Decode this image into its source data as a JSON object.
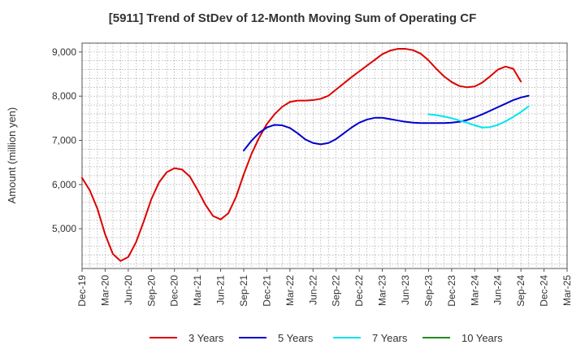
{
  "chart_data": {
    "type": "line",
    "title": "[5911]  Trend of StDev of 12-Month Moving Sum of Operating CF",
    "ylabel": "Amount (million yen)",
    "xlabel": "",
    "ylim": [
      4100,
      9200
    ],
    "yticks": [
      5000,
      6000,
      7000,
      8000,
      9000
    ],
    "ytick_labels": [
      "5,000",
      "6,000",
      "7,000",
      "8,000",
      "9,000"
    ],
    "x_categories": [
      "Dec-19",
      "Mar-20",
      "Jun-20",
      "Sep-20",
      "Dec-20",
      "Mar-21",
      "Jun-21",
      "Sep-21",
      "Dec-21",
      "Mar-22",
      "Jun-22",
      "Sep-22",
      "Dec-22",
      "Mar-23",
      "Jun-23",
      "Sep-23",
      "Dec-23",
      "Mar-24",
      "Jun-24",
      "Sep-24",
      "Dec-24",
      "Mar-25"
    ],
    "x_months": [
      "Dec-19",
      "Jan-20",
      "Feb-20",
      "Mar-20",
      "Apr-20",
      "May-20",
      "Jun-20",
      "Jul-20",
      "Aug-20",
      "Sep-20",
      "Oct-20",
      "Nov-20",
      "Dec-20",
      "Jan-21",
      "Feb-21",
      "Mar-21",
      "Apr-21",
      "May-21",
      "Jun-21",
      "Jul-21",
      "Aug-21",
      "Sep-21",
      "Oct-21",
      "Nov-21",
      "Dec-21",
      "Jan-22",
      "Feb-22",
      "Mar-22",
      "Apr-22",
      "May-22",
      "Jun-22",
      "Jul-22",
      "Aug-22",
      "Sep-22",
      "Oct-22",
      "Nov-22",
      "Dec-22",
      "Jan-23",
      "Feb-23",
      "Mar-23",
      "Apr-23",
      "May-23",
      "Jun-23",
      "Jul-23",
      "Aug-23",
      "Sep-23",
      "Oct-23",
      "Nov-23",
      "Dec-23",
      "Jan-24",
      "Feb-24",
      "Mar-24",
      "Apr-24",
      "May-24",
      "Jun-24",
      "Jul-24",
      "Aug-24",
      "Sep-24",
      "Oct-24",
      "Nov-24",
      "Dec-24",
      "Jan-25",
      "Feb-25",
      "Mar-25"
    ],
    "grid": true,
    "legend_position": "bottom",
    "series": [
      {
        "name": "3 Years",
        "color": "#dd0000",
        "start": "Dec-19",
        "values": [
          6150,
          5870,
          5450,
          4870,
          4430,
          4270,
          4360,
          4690,
          5160,
          5670,
          6050,
          6280,
          6370,
          6340,
          6180,
          5880,
          5550,
          5290,
          5210,
          5350,
          5720,
          6230,
          6690,
          7060,
          7370,
          7590,
          7760,
          7870,
          7900,
          7900,
          7910,
          7940,
          8010,
          8150,
          8290,
          8430,
          8560,
          8690,
          8820,
          8950,
          9030,
          9070,
          9070,
          9040,
          8960,
          8810,
          8620,
          8450,
          8320,
          8230,
          8200,
          8220,
          8310,
          8450,
          8600,
          8670,
          8620,
          8330
        ]
      },
      {
        "name": "5 Years",
        "color": "#0000cc",
        "start": "Sep-21",
        "values": [
          6770,
          6990,
          7170,
          7290,
          7350,
          7340,
          7280,
          7160,
          7020,
          6940,
          6910,
          6940,
          7030,
          7160,
          7290,
          7400,
          7470,
          7510,
          7510,
          7480,
          7450,
          7420,
          7400,
          7390,
          7390,
          7390,
          7390,
          7400,
          7420,
          7460,
          7520,
          7590,
          7670,
          7750,
          7830,
          7910,
          7970,
          8010
        ]
      },
      {
        "name": "7 Years",
        "color": "#00e5ee",
        "start": "Sep-23",
        "values": [
          7590,
          7570,
          7540,
          7500,
          7450,
          7400,
          7340,
          7290,
          7300,
          7350,
          7430,
          7530,
          7640,
          7770
        ]
      },
      {
        "name": "10 Years",
        "color": "#228b22",
        "start": "Sep-24",
        "values": []
      }
    ]
  },
  "legend": [
    "3 Years",
    "5 Years",
    "7 Years",
    "10 Years"
  ]
}
